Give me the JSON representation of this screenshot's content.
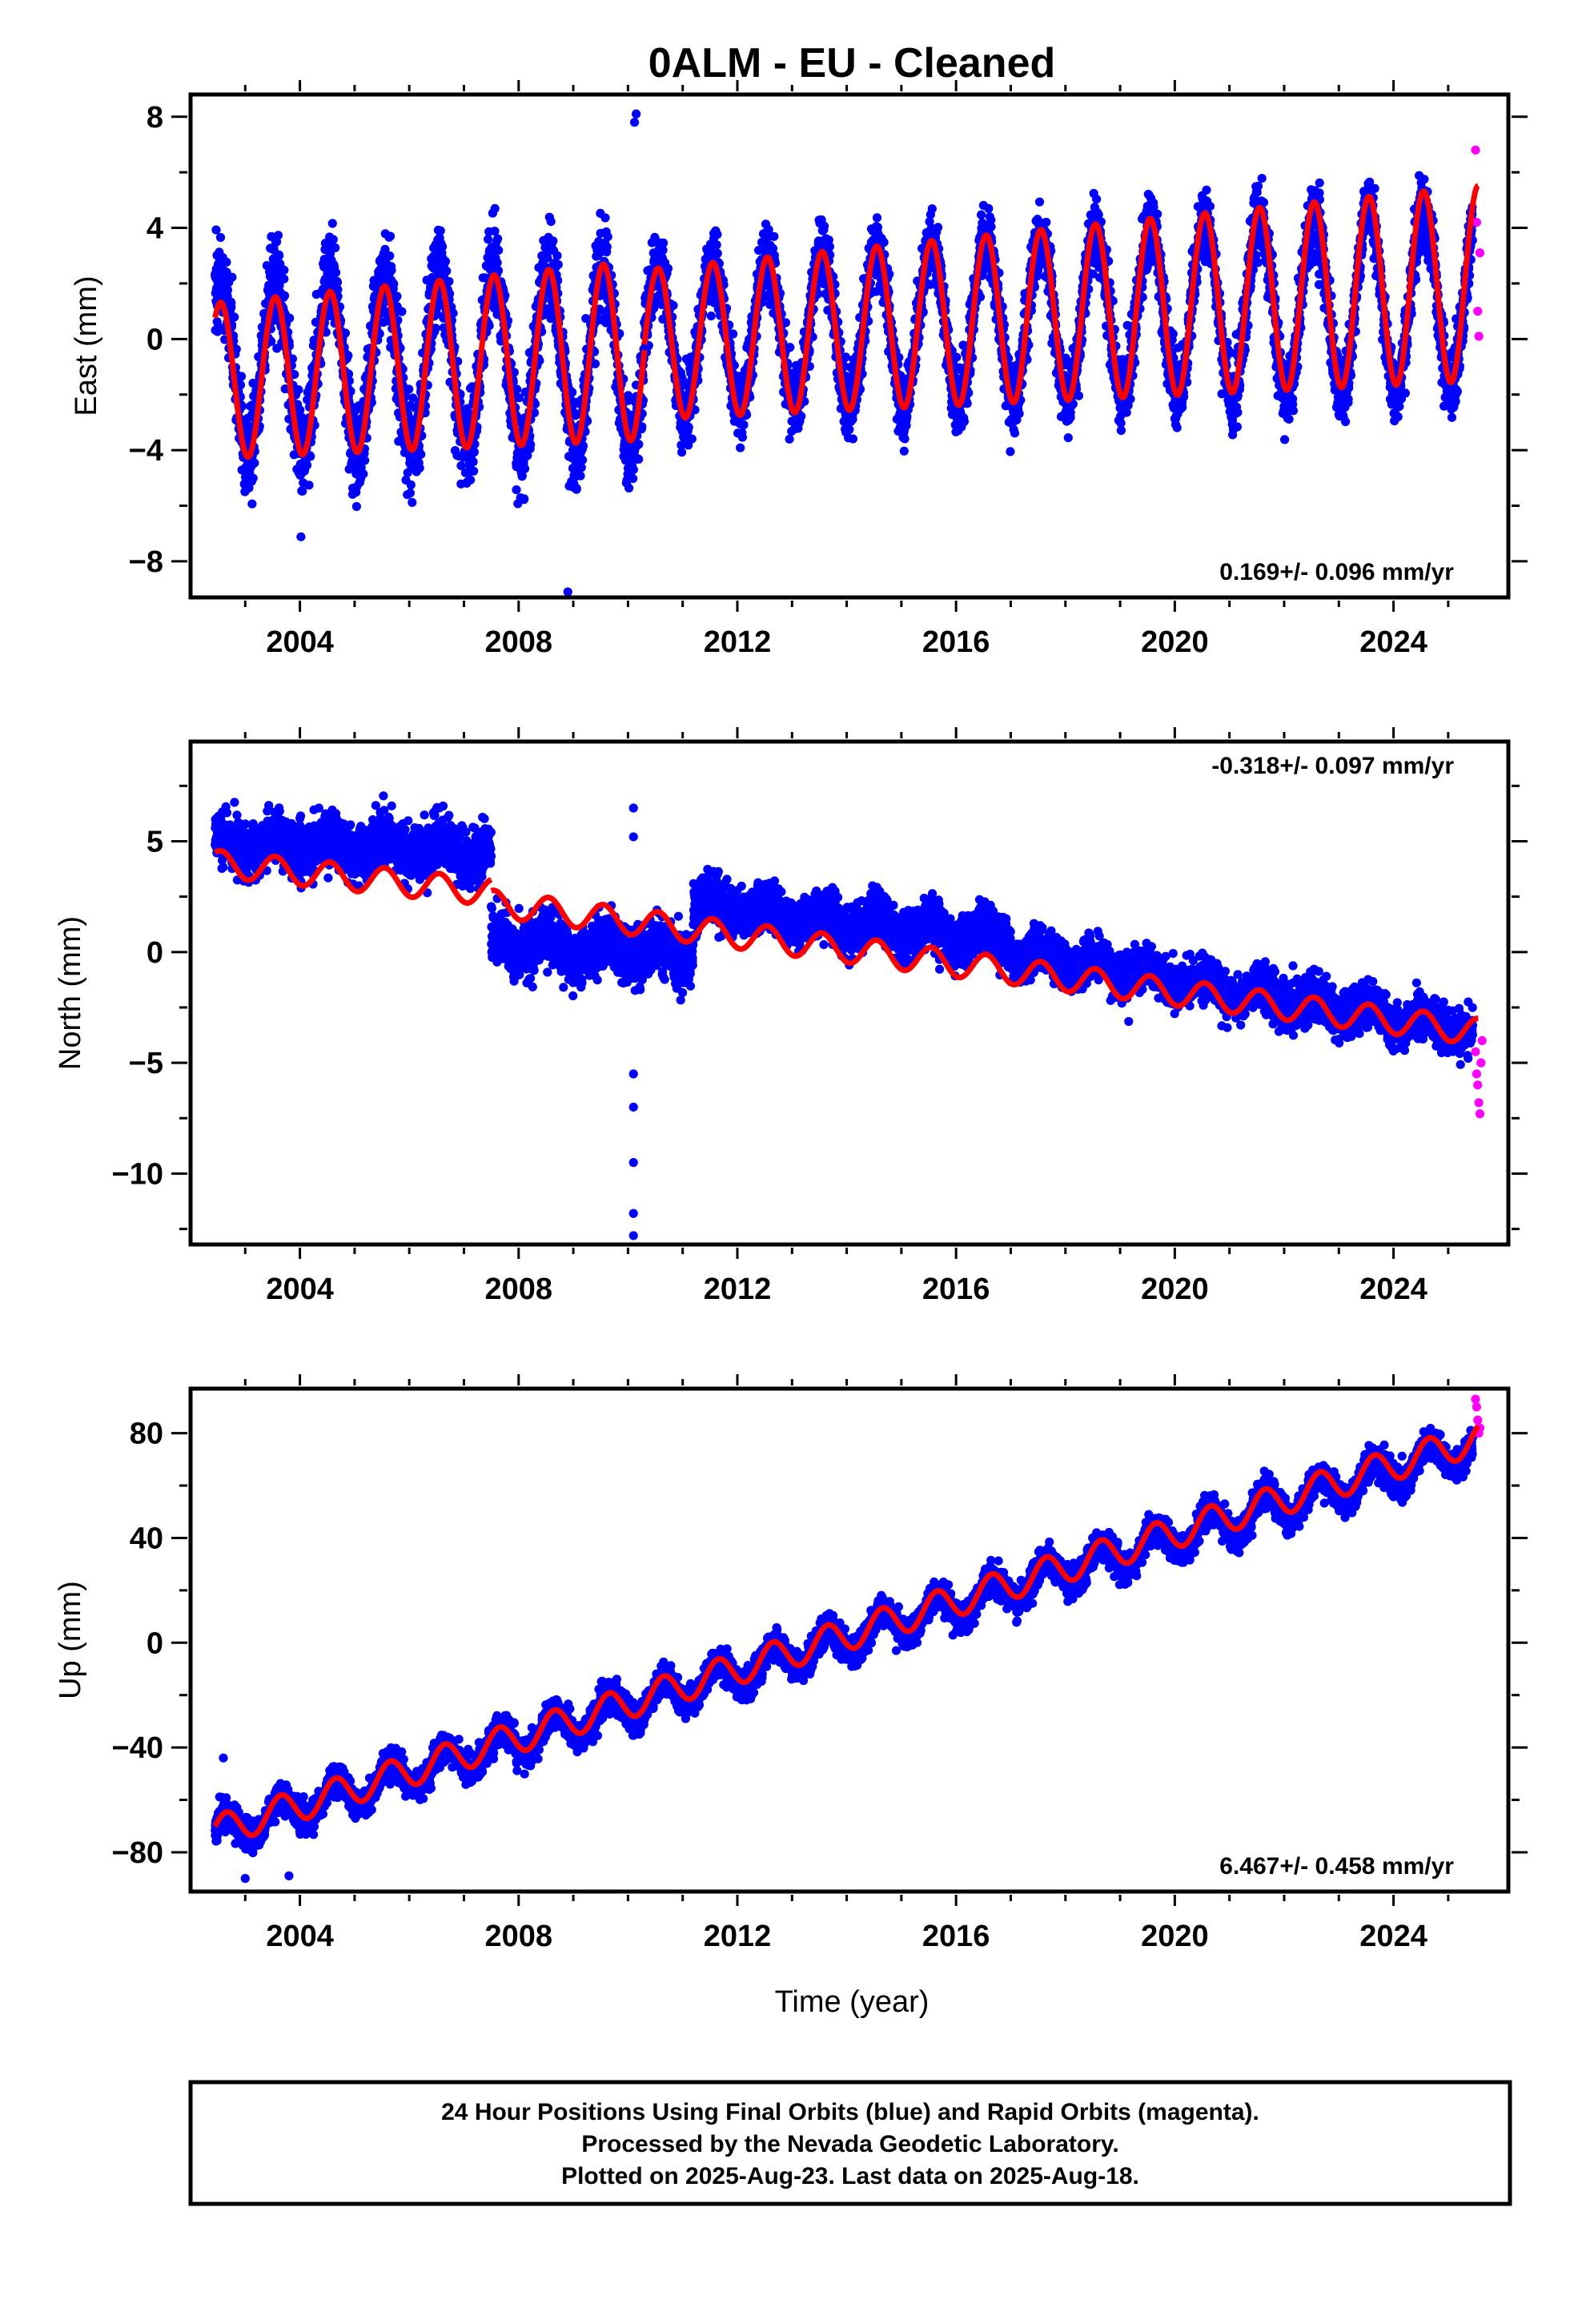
{
  "title": "0ALM  - EU - Cleaned",
  "colors": {
    "final": "#0000ff",
    "rapid": "#ff00ff",
    "model": "#ff0000",
    "frame": "#000000"
  },
  "x_axis_label": "Time (year)",
  "footer": {
    "line1": "24 Hour Positions Using Final Orbits (blue) and Rapid Orbits (magenta).",
    "line2": "Processed by the Nevada Geodetic Laboratory.",
    "line3": "Plotted on 2025-Aug-23. Last data on 2025-Aug-18."
  },
  "chart_data": [
    {
      "type": "scatter",
      "ylabel": "East (mm)",
      "rate": "0.169+/- 0.096 mm/yr",
      "rate_position": "bottom-right",
      "xlim": [
        2002.0,
        2026.1
      ],
      "ylim": [
        -9.3,
        8.8
      ],
      "xticks": [
        2004,
        2008,
        2012,
        2016,
        2020,
        2024
      ],
      "yticks": [
        -8,
        -4,
        0,
        4,
        8
      ],
      "ytick_labels": [
        "−8",
        "−4",
        "0",
        "4",
        "8"
      ],
      "series": [
        {
          "kind": "final_positions",
          "x_start": 2002.45,
          "x_end": 2025.45,
          "segments": [
            {
              "from": 2002.45,
              "to": 2010.3,
              "offset_start": -1.0,
              "offset_end": -0.6,
              "amplitude": 3.0,
              "amp_growth": 0.02,
              "noise": 1.5
            },
            {
              "from": 2010.3,
              "to": 2025.45,
              "offset_start": 0.0,
              "offset_end": 1.6,
              "amplitude": 2.6,
              "amp_growth": 0.02,
              "noise": 1.1
            }
          ],
          "outliers": [
            [
              2010.15,
              8.1
            ],
            [
              2010.12,
              7.8
            ],
            [
              2008.9,
              -9.1
            ]
          ]
        },
        {
          "kind": "rapid_positions",
          "points": [
            [
              2025.5,
              6.8
            ],
            [
              2025.52,
              4.2
            ],
            [
              2025.54,
              1.0
            ],
            [
              2025.56,
              0.1
            ],
            [
              2025.58,
              3.1
            ]
          ]
        },
        {
          "kind": "model",
          "segments": [
            {
              "from": 2002.45,
              "to": 2010.3,
              "offset_start": -1.5,
              "offset_end": -0.4,
              "amplitude": 2.8,
              "amp_growth": 0.02
            },
            {
              "from": 2010.3,
              "to": 2025.55,
              "offset_start": -0.2,
              "offset_end": 2.0,
              "amplitude": 2.7,
              "amp_growth": 0.02
            }
          ],
          "phase": 2002.55
        }
      ]
    },
    {
      "type": "scatter",
      "ylabel": "North (mm)",
      "rate": "-0.318+/- 0.097 mm/yr",
      "rate_position": "top-right",
      "xlim": [
        2002.0,
        2026.1
      ],
      "ylim": [
        -13.2,
        9.5
      ],
      "xticks": [
        2004,
        2008,
        2012,
        2016,
        2020,
        2024
      ],
      "yticks": [
        -10,
        -5,
        0,
        5
      ],
      "ytick_labels": [
        "−10",
        "−5",
        "0",
        "5"
      ],
      "series": [
        {
          "kind": "final_positions",
          "x_start": 2002.45,
          "x_end": 2025.45,
          "segments": [
            {
              "from": 2002.45,
              "to": 2007.5,
              "offset_start": 5.0,
              "offset_end": 4.5,
              "amplitude": 0.4,
              "noise": 1.1
            },
            {
              "from": 2007.5,
              "to": 2011.2,
              "offset_start": 0.3,
              "offset_end": 0.0,
              "amplitude": 0.4,
              "noise": 1.1
            },
            {
              "from": 2011.2,
              "to": 2017.0,
              "offset_start": 2.2,
              "offset_end": 0.5,
              "amplitude": 0.4,
              "noise": 1.0
            },
            {
              "from": 2017.0,
              "to": 2025.45,
              "offset_start": 0.0,
              "offset_end": -3.6,
              "amplitude": 0.4,
              "noise": 0.9
            }
          ],
          "outliers": [
            [
              2010.1,
              -12.8
            ],
            [
              2010.1,
              -11.8
            ],
            [
              2010.1,
              -9.5
            ],
            [
              2010.1,
              -7.0
            ],
            [
              2010.1,
              -5.5
            ],
            [
              2010.1,
              6.5
            ],
            [
              2010.1,
              5.2
            ]
          ]
        },
        {
          "kind": "rapid_positions",
          "points": [
            [
              2025.5,
              -4.5
            ],
            [
              2025.52,
              -5.5
            ],
            [
              2025.54,
              -6.0
            ],
            [
              2025.56,
              -6.8
            ],
            [
              2025.58,
              -7.3
            ],
            [
              2025.6,
              -5.0
            ],
            [
              2025.62,
              -4.0
            ]
          ]
        },
        {
          "kind": "model",
          "segments": [
            {
              "from": 2002.45,
              "to": 2007.5,
              "offset_start": 4.0,
              "offset_end": 2.7,
              "amplitude": 0.6
            },
            {
              "from": 2007.5,
              "to": 2025.55,
              "offset_start": 2.2,
              "offset_end": -3.6,
              "amplitude": 0.6
            }
          ],
          "phase": 2002.55
        }
      ]
    },
    {
      "type": "scatter",
      "ylabel": "Up (mm)",
      "rate": "6.467+/- 0.458 mm/yr",
      "rate_position": "bottom-right",
      "xlim": [
        2002.0,
        2026.1
      ],
      "ylim": [
        -95,
        97
      ],
      "xticks": [
        2004,
        2008,
        2012,
        2016,
        2020,
        2024
      ],
      "yticks": [
        -80,
        -40,
        0,
        40,
        80
      ],
      "ytick_labels": [
        "−80",
        "−40",
        "0",
        "40",
        "80"
      ],
      "series": [
        {
          "kind": "final_positions",
          "x_start": 2002.45,
          "x_end": 2025.45,
          "segments": [
            {
              "from": 2002.45,
              "to": 2025.45,
              "offset_start": -73.0,
              "offset_end": 75.0,
              "amplitude": 6.0,
              "noise": 5.0
            }
          ],
          "outliers": [
            [
              2003.0,
              -90.0
            ],
            [
              2003.8,
              -89.0
            ],
            [
              2002.6,
              -44.0
            ]
          ]
        },
        {
          "kind": "rapid_positions",
          "points": [
            [
              2025.5,
              93.0
            ],
            [
              2025.52,
              90.0
            ],
            [
              2025.54,
              85.0
            ],
            [
              2025.56,
              80.0
            ],
            [
              2025.58,
              82.0
            ]
          ]
        },
        {
          "kind": "model",
          "segments": [
            {
              "from": 2002.45,
              "to": 2025.55,
              "offset_start": -72.0,
              "offset_end": 78.0,
              "amplitude": 6.0
            }
          ],
          "phase": 2002.65
        }
      ]
    }
  ]
}
